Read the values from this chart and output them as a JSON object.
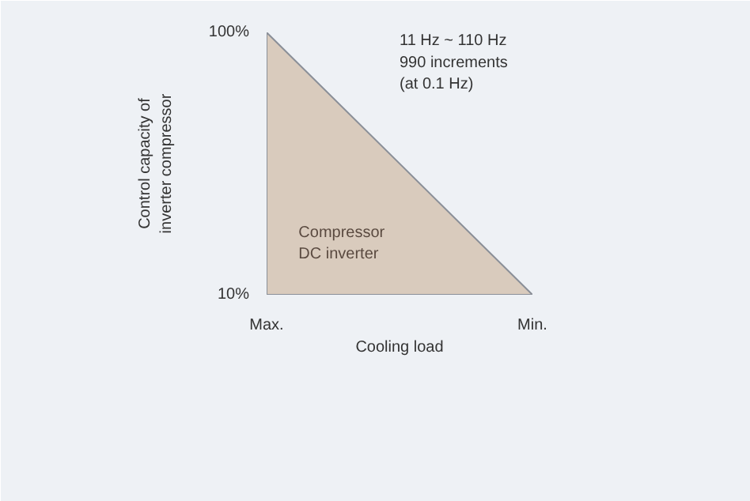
{
  "chart_data": {
    "type": "area",
    "categories": [
      "Max.",
      "Min."
    ],
    "values": [
      100,
      10
    ],
    "color": "#d9cbbd",
    "ylim": [
      10,
      100
    ],
    "yticks": [
      {
        "value": 10,
        "label": "10%"
      },
      {
        "value": 100,
        "label": "100%"
      }
    ],
    "xlabel": "Cooling load",
    "ylabel": "Control capacity of\ninverter compressor",
    "annotations": [
      "11 Hz ~ 110 Hz\n990 increments\n(at 0.1 Hz)",
      "Compressor\nDC inverter"
    ]
  }
}
